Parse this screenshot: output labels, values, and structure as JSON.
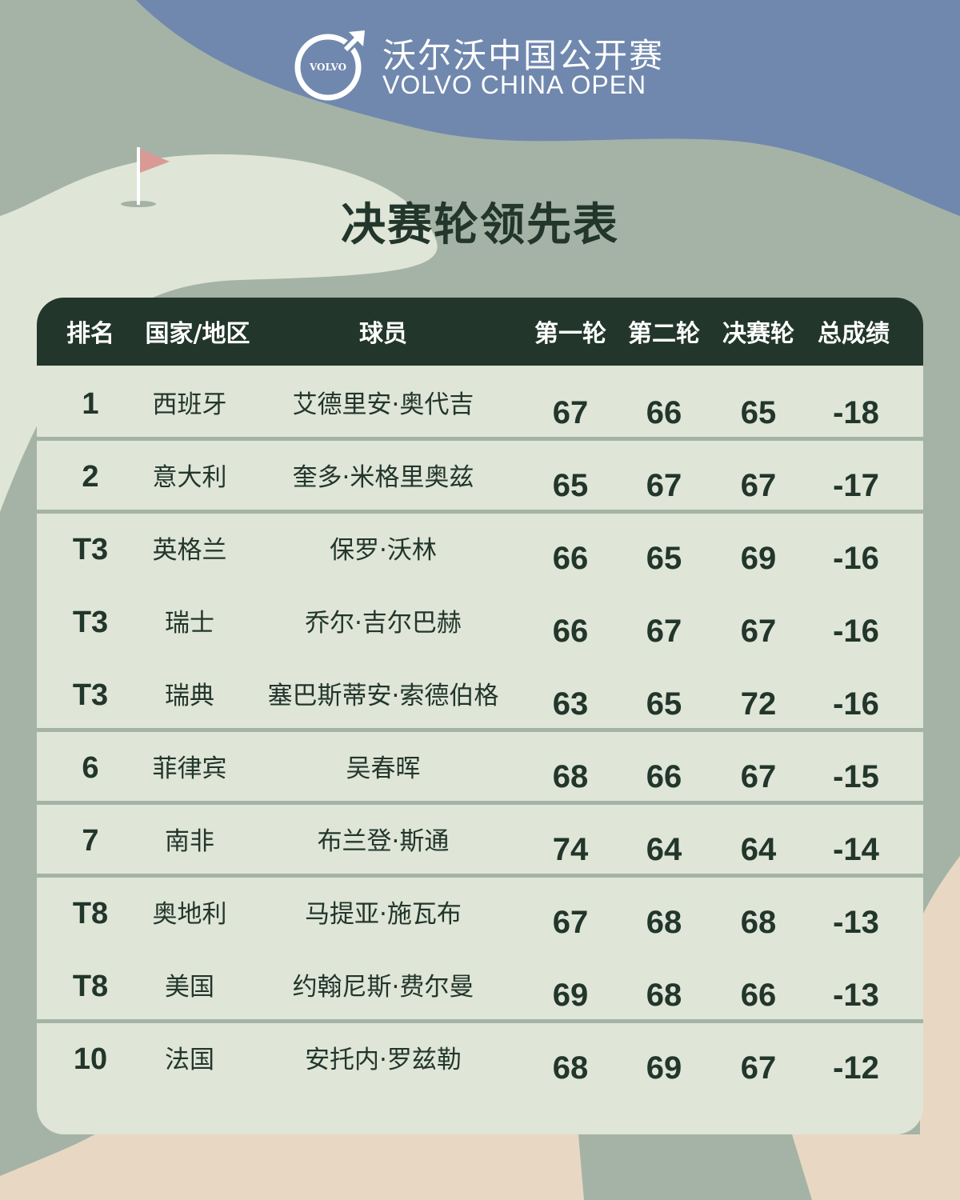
{
  "brand": {
    "logo_text": "VOLVO",
    "name_cn": "沃尔沃中国公开赛",
    "name_en": "VOLVO CHINA OPEN"
  },
  "title": "决赛轮领先表",
  "colors": {
    "dark_green": "#22362b",
    "sage": "#a4b3a5",
    "blue": "#7088ae",
    "panel": "#dfe5d7",
    "beige": "#e8d8c3",
    "flag": "#d99a95"
  },
  "icons": {
    "logo": "volvo-logo-icon",
    "flag": "golf-flag-icon"
  },
  "headers": {
    "rank": "排名",
    "country": "国家/地区",
    "player": "球员",
    "r1": "第一轮",
    "r2": "第二轮",
    "r3": "决赛轮",
    "total": "总成绩"
  },
  "rows": [
    {
      "rank": "1",
      "country": "西班牙",
      "player": "艾德里安·奥代吉",
      "r1": "67",
      "r2": "66",
      "r3": "65",
      "total": "-18"
    },
    {
      "rank": "2",
      "country": "意大利",
      "player": "奎多·米格里奥兹",
      "r1": "65",
      "r2": "67",
      "r3": "67",
      "total": "-17"
    },
    {
      "rank": "T3",
      "country": "英格兰",
      "player": "保罗·沃林",
      "r1": "66",
      "r2": "65",
      "r3": "69",
      "total": "-16"
    },
    {
      "rank": "T3",
      "country": "瑞士",
      "player": "乔尔·吉尔巴赫",
      "r1": "66",
      "r2": "67",
      "r3": "67",
      "total": "-16"
    },
    {
      "rank": "T3",
      "country": "瑞典",
      "player": "塞巴斯蒂安·索德伯格",
      "r1": "63",
      "r2": "65",
      "r3": "72",
      "total": "-16"
    },
    {
      "rank": "6",
      "country": "菲律宾",
      "player": "吴春晖",
      "r1": "68",
      "r2": "66",
      "r3": "67",
      "total": "-15"
    },
    {
      "rank": "7",
      "country": "南非",
      "player": "布兰登·斯通",
      "r1": "74",
      "r2": "64",
      "r3": "64",
      "total": "-14"
    },
    {
      "rank": "T8",
      "country": "奥地利",
      "player": "马提亚·施瓦布",
      "r1": "67",
      "r2": "68",
      "r3": "68",
      "total": "-13"
    },
    {
      "rank": "T8",
      "country": "美国",
      "player": "约翰尼斯·费尔曼",
      "r1": "69",
      "r2": "68",
      "r3": "66",
      "total": "-13"
    },
    {
      "rank": "10",
      "country": "法国",
      "player": "安托内·罗兹勒",
      "r1": "68",
      "r2": "69",
      "r3": "67",
      "total": "-12"
    }
  ]
}
